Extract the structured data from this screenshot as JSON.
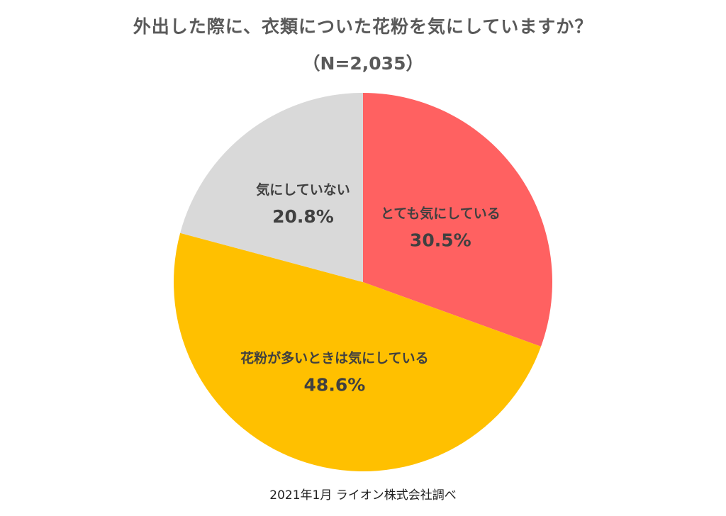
{
  "chart_data": {
    "type": "pie",
    "title": "外出した際に、衣類についた花粉を気にしていますか？",
    "subtitle": "（N=2,035）",
    "slices": [
      {
        "label": "とても気にしている",
        "value": 30.5,
        "display": "30.5%",
        "color": "#FF6161"
      },
      {
        "label": "花粉が多いときは気にしている",
        "value": 48.6,
        "display": "48.6%",
        "color": "#FFC000"
      },
      {
        "label": "気にしていない",
        "value": 20.8,
        "display": "20.8%",
        "color": "#D9D9D9"
      }
    ],
    "start_angle_deg": 0,
    "direction": "clockwise",
    "legend": "none"
  },
  "source": "2021年1月 ライオン株式会社調べ"
}
